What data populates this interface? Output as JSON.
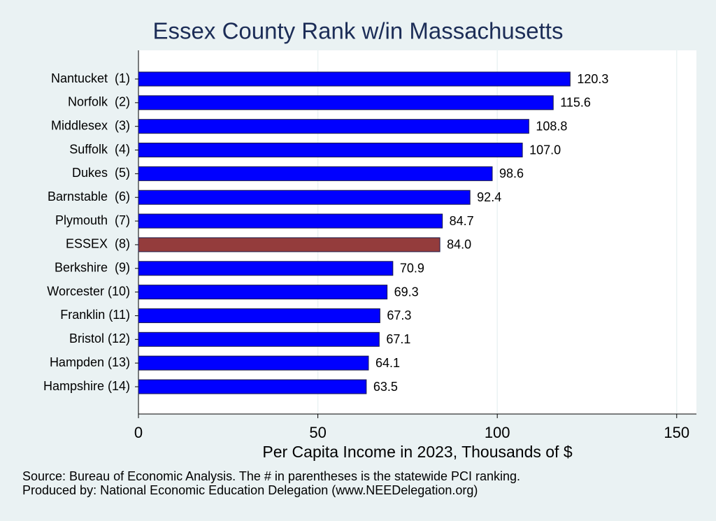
{
  "chart_data": {
    "type": "bar",
    "orientation": "horizontal",
    "title": "Essex County Rank w/in Massachusetts",
    "x_label": "Per Capita Income in 2023, Thousands of $",
    "notes": [
      "Source: Bureau of Economic Analysis. The # in parentheses is the statewide PCI ranking.",
      "Produced by: National Economic Education Delegation (www.NEEDelegation.org)"
    ],
    "categories": [
      "Nantucket  (1)",
      "Norfolk  (2)",
      "Middlesex  (3)",
      "Suffolk  (4)",
      "Dukes  (5)",
      "Barnstable  (6)",
      "Plymouth  (7)",
      "ESSEX  (8)",
      "Berkshire  (9)",
      "Worcester (10)",
      "Franklin (11)",
      "Bristol (12)",
      "Hampden (13)",
      "Hampshire (14)"
    ],
    "values": [
      120.3,
      115.6,
      108.8,
      107,
      98.6,
      92.4,
      84.7,
      84,
      70.9,
      69.3,
      67.3,
      67.1,
      64.1,
      63.5
    ],
    "value_labels": [
      "120.3",
      "115.6",
      "108.8",
      "107.0",
      "98.6",
      "92.4",
      "84.7",
      "84.0",
      "70.9",
      "69.3",
      "67.3",
      "67.1",
      "64.1",
      "63.5"
    ],
    "colors": [
      "#0000ff",
      "#0000ff",
      "#0000ff",
      "#0000ff",
      "#0000ff",
      "#0000ff",
      "#0000ff",
      "#943c3c",
      "#0000ff",
      "#0000ff",
      "#0000ff",
      "#0000ff",
      "#0000ff",
      "#0000ff"
    ],
    "xlim": [
      0,
      155.5
    ],
    "xticks": [
      0,
      50,
      100,
      150
    ],
    "grid": true
  }
}
